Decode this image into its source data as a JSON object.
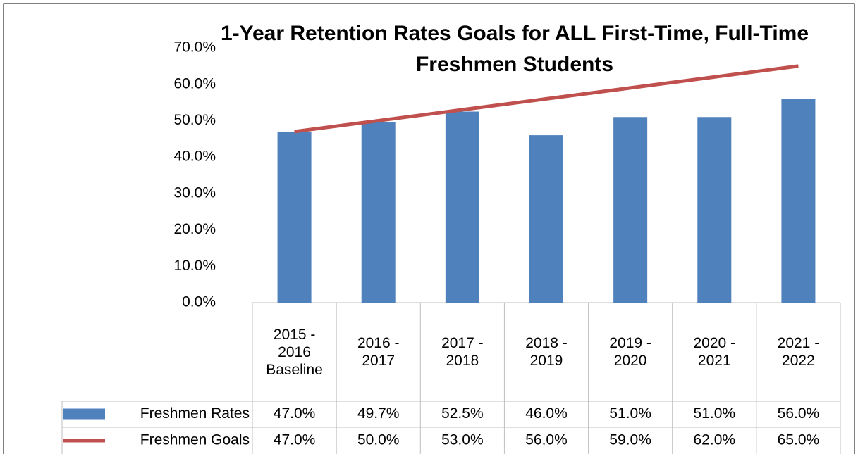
{
  "chart_data": {
    "type": "bar",
    "title": "1-Year Retention Rates Goals for ALL First-Time, Full-Time Freshmen Students",
    "categories": [
      "2015 - 2016 Baseline",
      "2016 - 2017",
      "2017 - 2018",
      "2018 - 2019",
      "2019 - 2020",
      "2020 - 2021",
      "2021 - 2022"
    ],
    "series": [
      {
        "name": "Freshmen Rates",
        "type": "bar",
        "color": "#4f81bd",
        "values": [
          47.0,
          49.7,
          52.5,
          46.0,
          51.0,
          51.0,
          56.0
        ],
        "value_labels": [
          "47.0%",
          "49.7%",
          "52.5%",
          "46.0%",
          "51.0%",
          "51.0%",
          "56.0%"
        ]
      },
      {
        "name": "Freshmen Goals",
        "type": "line",
        "color": "#c0504d",
        "values": [
          47.0,
          50.0,
          53.0,
          56.0,
          59.0,
          62.0,
          65.0
        ],
        "value_labels": [
          "47.0%",
          "50.0%",
          "53.0%",
          "56.0%",
          "59.0%",
          "62.0%",
          "65.0%"
        ]
      }
    ],
    "ylim": [
      0,
      70
    ],
    "yticks": [
      {
        "value": 0,
        "label": "0.0%"
      },
      {
        "value": 10,
        "label": "10.0%"
      },
      {
        "value": 20,
        "label": "20.0%"
      },
      {
        "value": 30,
        "label": "30.0%"
      },
      {
        "value": 40,
        "label": "40.0%"
      },
      {
        "value": 50,
        "label": "50.0%"
      },
      {
        "value": 60,
        "label": "60.0%"
      },
      {
        "value": 70,
        "label": "70.0%"
      }
    ],
    "grid": false
  }
}
